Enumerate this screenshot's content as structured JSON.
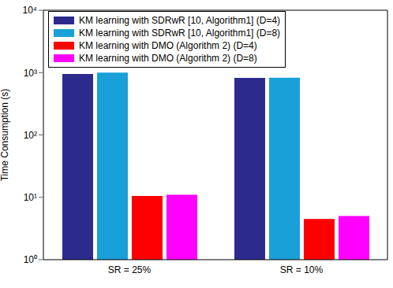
{
  "chart_data": {
    "type": "bar",
    "y_label": "Time Consumption (s)",
    "categories": [
      "SR = 25%",
      "SR = 10%"
    ],
    "series": [
      {
        "name": "KM learning with SDRwR [10, Algorithm1] (D=4)",
        "color": "#2d2a8e",
        "values": [
          950,
          820
        ]
      },
      {
        "name": "KM learning with SDRwR [10, Algorithm1] (D=8)",
        "color": "#1aa0d8",
        "values": [
          1000,
          830
        ]
      },
      {
        "name": "KM learning with DMO (Algorithm 2) (D=4)",
        "color": "#ff0000",
        "values": [
          10.5,
          4.5
        ]
      },
      {
        "name": "KM learning with DMO (Algorithm 2) (D=8)",
        "color": "#ff00ff",
        "values": [
          11,
          5
        ]
      }
    ],
    "ylim": [
      1,
      10000
    ],
    "yticks": [
      {
        "value": 1,
        "label": "10⁰"
      },
      {
        "value": 10,
        "label": "10¹"
      },
      {
        "value": 100,
        "label": "10²"
      },
      {
        "value": 1000,
        "label": "10³"
      },
      {
        "value": 10000,
        "label": "10⁴"
      }
    ],
    "log": "y",
    "legend": "upper left",
    "grid": false
  }
}
